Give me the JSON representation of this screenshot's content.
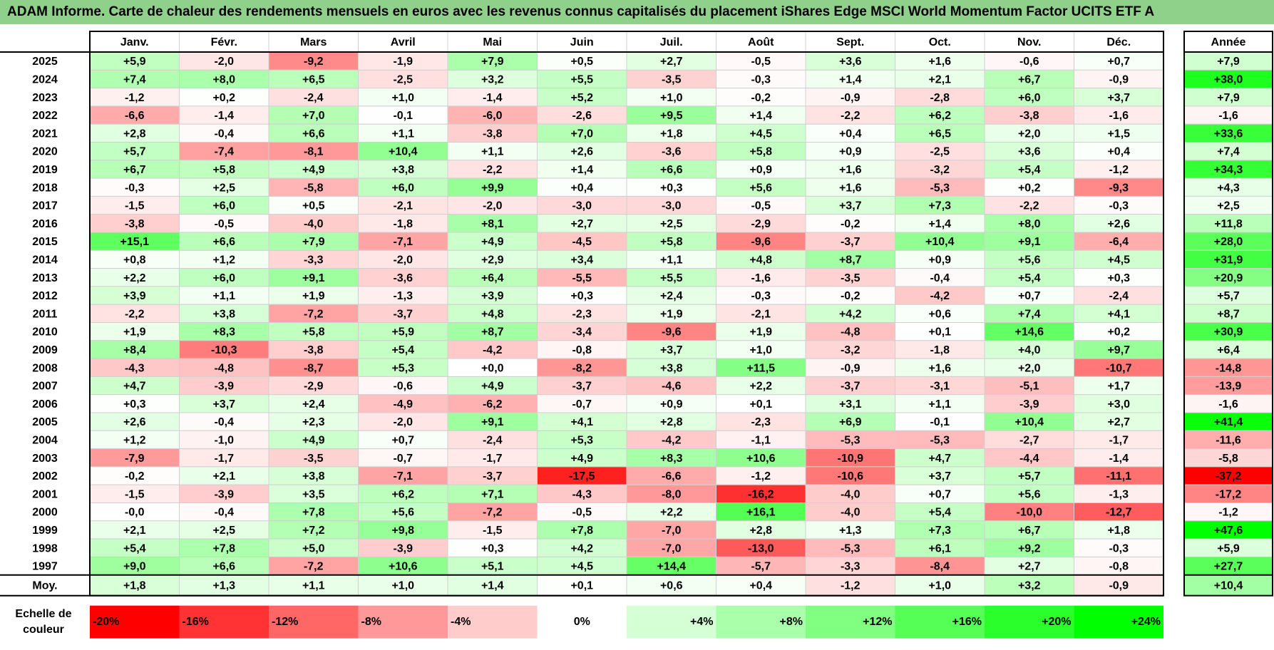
{
  "title": "ADAM Informe. Carte de chaleur des rendements mensuels en euros avec les revenus connus capitalisés du placement iShares Edge MSCI World Momentum Factor UCITS ETF A",
  "chart_data": {
    "type": "heatmap",
    "title": "ADAM Informe. Carte de chaleur des rendements mensuels en euros avec les revenus connus capitalisés du placement iShares Edge MSCI World Momentum Factor UCITS ETF A",
    "columns": [
      "Janv.",
      "Févr.",
      "Mars",
      "Avril",
      "Mai",
      "Juin",
      "Juil.",
      "Août",
      "Sept.",
      "Oct.",
      "Nov.",
      "Déc."
    ],
    "annual_header": "Année",
    "rows": [
      {
        "year": "2025",
        "values": [
          "+5,9",
          "-2,0",
          "-9,2",
          "-1,9",
          "+7,9",
          "+0,5",
          "+2,7",
          "-0,5",
          "+3,6",
          "+1,6",
          "-0,6",
          "+0,7"
        ],
        "annual": "+7,9"
      },
      {
        "year": "2024",
        "values": [
          "+7,4",
          "+8,0",
          "+6,5",
          "-2,5",
          "+3,2",
          "+5,5",
          "-3,5",
          "-0,3",
          "+1,4",
          "+2,1",
          "+6,7",
          "-0,9"
        ],
        "annual": "+38,0"
      },
      {
        "year": "2023",
        "values": [
          "-1,2",
          "+0,2",
          "-2,4",
          "+1,0",
          "-1,4",
          "+5,2",
          "+1,0",
          "-0,2",
          "-0,9",
          "-2,8",
          "+6,0",
          "+3,7"
        ],
        "annual": "+7,9"
      },
      {
        "year": "2022",
        "values": [
          "-6,6",
          "-1,4",
          "+7,0",
          "-0,1",
          "-6,0",
          "-2,6",
          "+9,5",
          "+1,4",
          "-2,2",
          "+6,2",
          "-3,8",
          "-1,6"
        ],
        "annual": "-1,6"
      },
      {
        "year": "2021",
        "values": [
          "+2,8",
          "-0,4",
          "+6,6",
          "+1,1",
          "-3,8",
          "+7,0",
          "+1,8",
          "+4,5",
          "+0,4",
          "+6,5",
          "+2,0",
          "+1,5"
        ],
        "annual": "+33,6"
      },
      {
        "year": "2020",
        "values": [
          "+5,7",
          "-7,4",
          "-8,1",
          "+10,4",
          "+1,1",
          "+2,6",
          "-3,6",
          "+5,8",
          "+0,9",
          "-2,5",
          "+3,6",
          "+0,4"
        ],
        "annual": "+7,4"
      },
      {
        "year": "2019",
        "values": [
          "+6,7",
          "+5,8",
          "+4,9",
          "+3,8",
          "-2,2",
          "+1,4",
          "+6,6",
          "+0,9",
          "+1,6",
          "-3,2",
          "+5,4",
          "-1,2"
        ],
        "annual": "+34,3"
      },
      {
        "year": "2018",
        "values": [
          "-0,3",
          "+2,5",
          "-5,8",
          "+6,0",
          "+9,9",
          "+0,4",
          "+0,3",
          "+5,6",
          "+1,6",
          "-5,3",
          "+0,2",
          "-9,3"
        ],
        "annual": "+4,3"
      },
      {
        "year": "2017",
        "values": [
          "-1,5",
          "+6,0",
          "+0,5",
          "-2,1",
          "-2,0",
          "-3,0",
          "-3,0",
          "-0,5",
          "+3,7",
          "+7,3",
          "-2,2",
          "-0,3"
        ],
        "annual": "+2,5"
      },
      {
        "year": "2016",
        "values": [
          "-3,8",
          "-0,5",
          "-4,0",
          "-1,8",
          "+8,1",
          "+2,7",
          "+2,5",
          "-2,9",
          "-0,2",
          "+1,4",
          "+8,0",
          "+2,6"
        ],
        "annual": "+11,8"
      },
      {
        "year": "2015",
        "values": [
          "+15,1",
          "+6,6",
          "+7,9",
          "-7,1",
          "+4,9",
          "-4,5",
          "+5,8",
          "-9,6",
          "-3,7",
          "+10,4",
          "+9,1",
          "-6,4"
        ],
        "annual": "+28,0"
      },
      {
        "year": "2014",
        "values": [
          "+0,8",
          "+1,2",
          "-3,3",
          "-2,0",
          "+2,9",
          "+3,4",
          "+1,1",
          "+4,8",
          "+8,7",
          "+0,9",
          "+5,6",
          "+4,5"
        ],
        "annual": "+31,9"
      },
      {
        "year": "2013",
        "values": [
          "+2,2",
          "+6,0",
          "+9,1",
          "-3,6",
          "+6,4",
          "-5,5",
          "+5,5",
          "-1,6",
          "-3,5",
          "-0,4",
          "+5,4",
          "+0,3"
        ],
        "annual": "+20,9"
      },
      {
        "year": "2012",
        "values": [
          "+3,9",
          "+1,1",
          "+1,9",
          "-1,3",
          "+3,9",
          "+0,3",
          "+2,4",
          "-0,3",
          "-0,2",
          "-4,2",
          "+0,7",
          "-2,4"
        ],
        "annual": "+5,7"
      },
      {
        "year": "2011",
        "values": [
          "-2,2",
          "+3,8",
          "-7,2",
          "-3,7",
          "+4,8",
          "-2,3",
          "+1,9",
          "-2,1",
          "+4,2",
          "+0,6",
          "+7,4",
          "+4,1"
        ],
        "annual": "+8,7"
      },
      {
        "year": "2010",
        "values": [
          "+1,9",
          "+8,3",
          "+5,8",
          "+5,9",
          "+8,7",
          "-3,4",
          "-9,6",
          "+1,9",
          "-4,8",
          "+0,1",
          "+14,6",
          "+0,2"
        ],
        "annual": "+30,9"
      },
      {
        "year": "2009",
        "values": [
          "+8,4",
          "-10,3",
          "-3,8",
          "+5,4",
          "-4,2",
          "-0,8",
          "+3,7",
          "+1,0",
          "-3,2",
          "-1,8",
          "+4,0",
          "+9,7"
        ],
        "annual": "+6,4"
      },
      {
        "year": "2008",
        "values": [
          "-4,3",
          "-4,8",
          "-8,7",
          "+5,3",
          "+0,0",
          "-8,2",
          "+3,8",
          "+11,5",
          "-0,9",
          "+1,6",
          "+2,0",
          "-10,7"
        ],
        "annual": "-14,8"
      },
      {
        "year": "2007",
        "values": [
          "+4,7",
          "-3,9",
          "-2,9",
          "-0,6",
          "+4,9",
          "-3,7",
          "-4,6",
          "+2,2",
          "-3,7",
          "-3,1",
          "-5,1",
          "+1,7"
        ],
        "annual": "-13,9"
      },
      {
        "year": "2006",
        "values": [
          "+0,3",
          "+3,7",
          "+2,4",
          "-4,9",
          "-6,2",
          "-0,7",
          "+0,9",
          "+0,1",
          "+3,1",
          "+1,1",
          "-3,9",
          "+3,0"
        ],
        "annual": "-1,6"
      },
      {
        "year": "2005",
        "values": [
          "+2,6",
          "-0,4",
          "+2,3",
          "-2,0",
          "+9,1",
          "+4,1",
          "+2,8",
          "-2,3",
          "+6,9",
          "-0,1",
          "+10,4",
          "+2,7"
        ],
        "annual": "+41,4"
      },
      {
        "year": "2004",
        "values": [
          "+1,2",
          "-1,0",
          "+4,9",
          "+0,7",
          "-2,4",
          "+5,3",
          "-4,2",
          "-1,1",
          "-5,3",
          "-5,3",
          "-2,7",
          "-1,7"
        ],
        "annual": "-11,6"
      },
      {
        "year": "2003",
        "values": [
          "-7,9",
          "-1,7",
          "-3,5",
          "-0,7",
          "-1,7",
          "+4,9",
          "+8,3",
          "+10,6",
          "-10,9",
          "+4,7",
          "-4,4",
          "-1,4"
        ],
        "annual": "-5,8"
      },
      {
        "year": "2002",
        "values": [
          "-0,2",
          "+2,1",
          "+3,8",
          "-7,1",
          "-3,7",
          "-17,5",
          "-6,6",
          "-1,2",
          "-10,6",
          "+3,7",
          "+5,7",
          "-11,1"
        ],
        "annual": "-37,2"
      },
      {
        "year": "2001",
        "values": [
          "-1,5",
          "-3,9",
          "+3,5",
          "+6,2",
          "+7,1",
          "-4,3",
          "-8,0",
          "-16,2",
          "-4,0",
          "+0,7",
          "+5,6",
          "-1,3"
        ],
        "annual": "-17,2"
      },
      {
        "year": "2000",
        "values": [
          "-0,0",
          "-0,4",
          "+7,8",
          "+5,6",
          "-7,2",
          "-0,5",
          "+2,2",
          "+16,1",
          "-4,0",
          "+5,4",
          "-10,0",
          "-12,7"
        ],
        "annual": "-1,2"
      },
      {
        "year": "1999",
        "values": [
          "+2,1",
          "+2,5",
          "+7,2",
          "+9,8",
          "-1,5",
          "+7,8",
          "-7,0",
          "+2,8",
          "+1,3",
          "+7,3",
          "+6,7",
          "+1,8"
        ],
        "annual": "+47,6"
      },
      {
        "year": "1998",
        "values": [
          "+5,4",
          "+7,8",
          "+5,0",
          "-3,9",
          "+0,3",
          "+4,2",
          "-7,0",
          "-13,0",
          "-5,3",
          "+6,1",
          "+9,2",
          "-0,3"
        ],
        "annual": "+5,9"
      },
      {
        "year": "1997",
        "values": [
          "+9,0",
          "+6,6",
          "-7,2",
          "+10,6",
          "+5,1",
          "+4,5",
          "+14,4",
          "-5,7",
          "-3,3",
          "-8,4",
          "+2,7",
          "-0,8"
        ],
        "annual": "+27,7"
      }
    ],
    "average": {
      "label": "Moy.",
      "values": [
        "+1,8",
        "+1,3",
        "+1,1",
        "+1,0",
        "+1,4",
        "+0,1",
        "+0,6",
        "+0,4",
        "-1,2",
        "+1,0",
        "+3,2",
        "-0,9"
      ],
      "annual": "+10,4"
    },
    "scale": {
      "label_line1": "Echelle de",
      "label_line2": "couleur",
      "stops": [
        {
          "label": "-20%",
          "value": -20,
          "color": "#ff0000"
        },
        {
          "label": "-16%",
          "value": -16,
          "color": "#ff3333"
        },
        {
          "label": "-12%",
          "value": -12,
          "color": "#ff6666"
        },
        {
          "label": "-8%",
          "value": -8,
          "color": "#ff9999"
        },
        {
          "label": "-4%",
          "value": -4,
          "color": "#ffcccc"
        },
        {
          "label": "0%",
          "value": 0,
          "color": "#ffffff"
        },
        {
          "label": "+4%",
          "value": 4,
          "color": "#d5ffd5"
        },
        {
          "label": "+8%",
          "value": 8,
          "color": "#aaffaa"
        },
        {
          "label": "+12%",
          "value": 12,
          "color": "#80ff80"
        },
        {
          "label": "+16%",
          "value": 16,
          "color": "#55ff55"
        },
        {
          "label": "+20%",
          "value": 20,
          "color": "#2bff2b"
        },
        {
          "label": "+24%",
          "value": 24,
          "color": "#00ff00"
        }
      ]
    }
  }
}
